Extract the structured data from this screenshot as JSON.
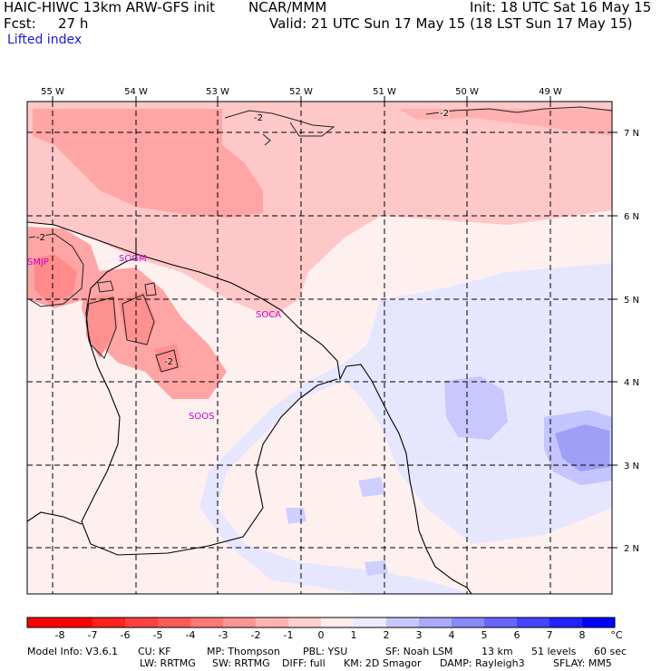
{
  "header": {
    "model_line": "HAIC-HIWC 13km ARW-GFS init",
    "org": "NCAR/MMM",
    "init": "Init: 18 UTC Sat 16 May 15",
    "fcst_label": "Fcst:",
    "fcst_value": "27 h",
    "valid": "Valid: 21 UTC Sun 17 May 15 (18 LST Sun 17 May 15)",
    "field": "Lifted index"
  },
  "map": {
    "lon_labels": [
      "55 W",
      "54 W",
      "53 W",
      "52 W",
      "51 W",
      "50 W",
      "49 W"
    ],
    "lat_labels": [
      "7 N",
      "6 N",
      "5 N",
      "4 N",
      "3 N",
      "2 N"
    ],
    "stations": [
      "SMJP",
      "SOGM",
      "SOCA",
      "SOOS"
    ],
    "contour_labels": [
      "-2",
      "-2",
      "-2",
      "-2"
    ]
  },
  "colorbar": {
    "labels": [
      "-8",
      "-7",
      "-6",
      "-5",
      "-4",
      "-3",
      "-2",
      "-1",
      "0",
      "1",
      "2",
      "3",
      "4",
      "5",
      "6",
      "7",
      "8"
    ],
    "unit": "°C",
    "colors": [
      "#ff0000",
      "#ff2020",
      "#ff4040",
      "#ff5a5a",
      "#ff7777",
      "#ff9494",
      "#ffb3b3",
      "#ffd0d0",
      "#ffebeb",
      "#ebebff",
      "#c8c8ff",
      "#aaaaff",
      "#8888ff",
      "#6666ff",
      "#4444ff",
      "#2222ff",
      "#0000ff"
    ]
  },
  "footer": {
    "line1": [
      "Model Info: V3.6.1",
      "CU: KF",
      "MP: Thompson",
      "PBL: YSU",
      "SF: Noah LSM",
      "13 km",
      "51 levels",
      "60 sec"
    ],
    "line2": [
      "LW: RRTMG",
      "SW: RRTMG",
      "DIFF: full",
      "KM: 2D Smagor",
      "DAMP: Rayleigh3",
      "SFLAY: MM5"
    ]
  }
}
